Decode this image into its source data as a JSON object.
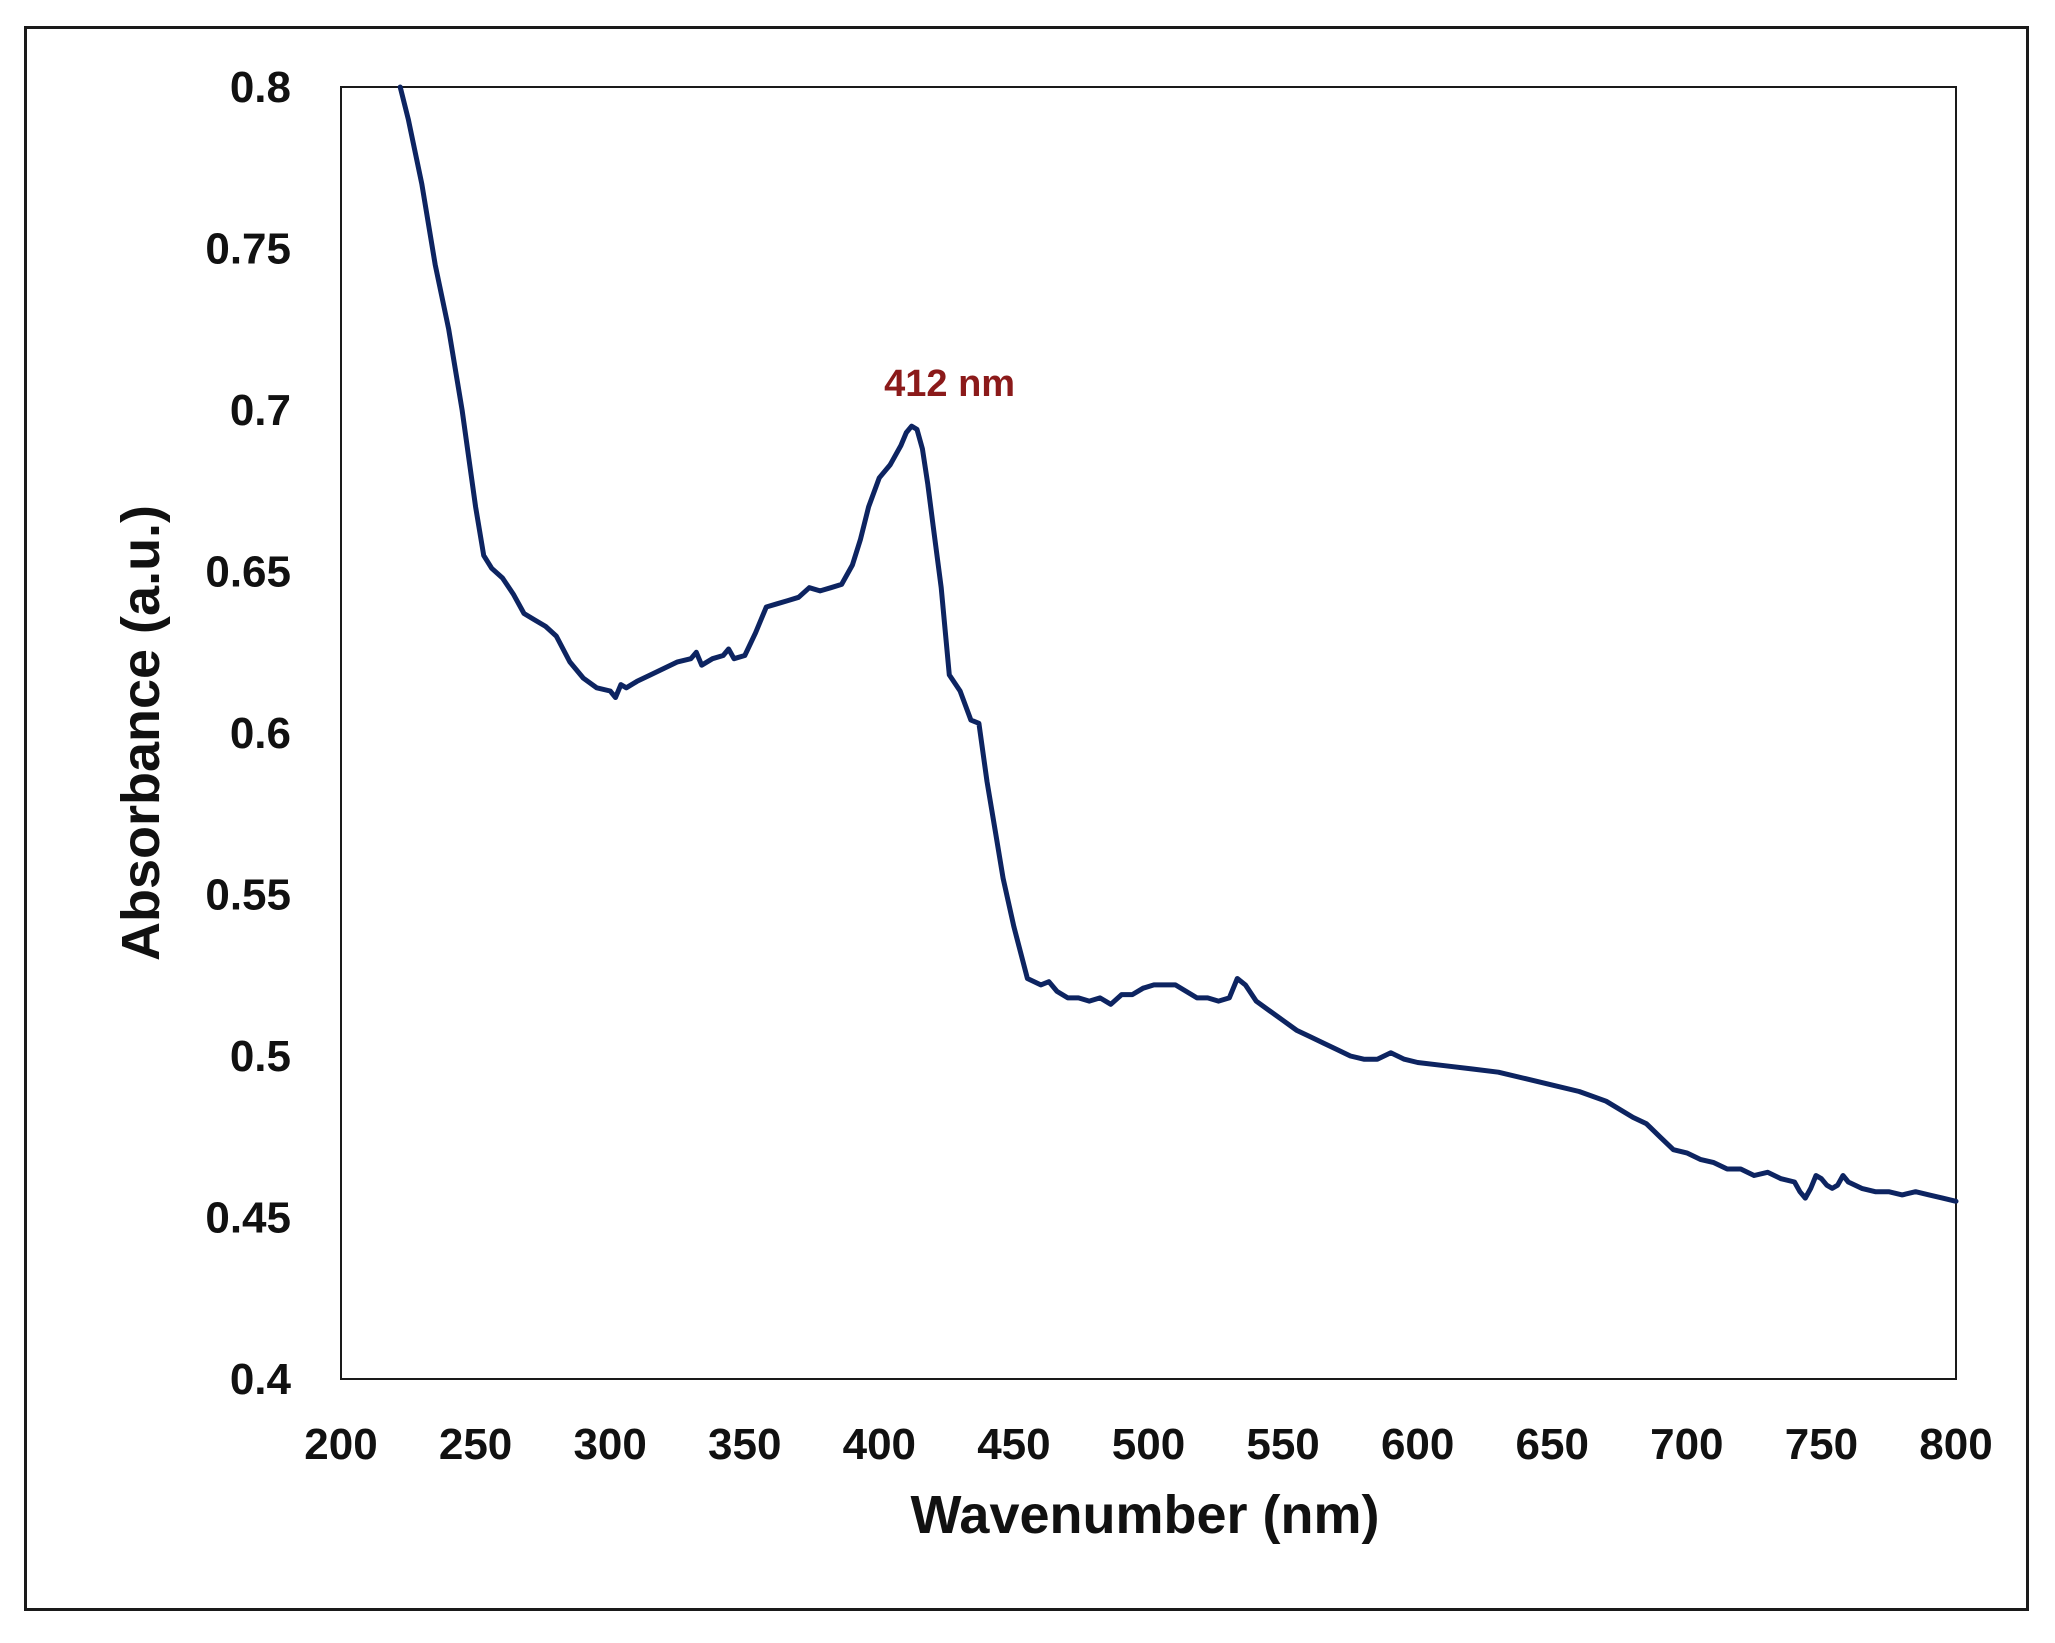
{
  "chart_data": {
    "type": "line",
    "title": "",
    "xlabel": "Wavenumber  (nm)",
    "ylabel": "Absorbance  (a.u.)",
    "xlim": [
      200,
      800
    ],
    "ylim": [
      0.4,
      0.8
    ],
    "x_ticks": [
      "200",
      "250",
      "300",
      "350",
      "400",
      "450",
      "500",
      "550",
      "600",
      "650",
      "700",
      "750",
      "800"
    ],
    "y_ticks": [
      "0.4",
      "0.45",
      "0.5",
      "0.55",
      "0.6",
      "0.65",
      "0.7",
      "0.75",
      "0.8"
    ],
    "grid": false,
    "legend": "none",
    "series": [
      {
        "name": "Absorbance",
        "color": "#0d2461",
        "x": [
          222,
          225,
          230,
          235,
          240,
          245,
          250,
          253,
          256,
          260,
          264,
          268,
          272,
          276,
          280,
          285,
          290,
          295,
          300,
          302,
          304,
          306,
          310,
          315,
          320,
          325,
          330,
          332,
          334,
          338,
          342,
          344,
          346,
          350,
          354,
          358,
          362,
          366,
          370,
          374,
          378,
          382,
          386,
          390,
          393,
          396,
          400,
          404,
          408,
          410,
          412,
          414,
          416,
          418,
          420,
          423,
          426,
          430,
          434,
          437,
          440,
          443,
          446,
          450,
          455,
          460,
          463,
          466,
          470,
          474,
          478,
          482,
          486,
          490,
          494,
          498,
          502,
          506,
          510,
          514,
          518,
          522,
          526,
          530,
          533,
          536,
          540,
          545,
          550,
          555,
          560,
          565,
          570,
          575,
          580,
          585,
          590,
          595,
          600,
          610,
          620,
          630,
          640,
          650,
          660,
          670,
          680,
          685,
          690,
          695,
          700,
          705,
          710,
          715,
          720,
          725,
          730,
          735,
          740,
          742,
          744,
          746,
          748,
          750,
          752,
          754,
          756,
          758,
          760,
          765,
          770,
          775,
          780,
          785,
          790,
          795,
          800
        ],
        "values": [
          0.8,
          0.79,
          0.77,
          0.745,
          0.725,
          0.7,
          0.67,
          0.655,
          0.651,
          0.648,
          0.643,
          0.637,
          0.635,
          0.633,
          0.63,
          0.622,
          0.617,
          0.614,
          0.613,
          0.611,
          0.615,
          0.614,
          0.616,
          0.618,
          0.62,
          0.622,
          0.623,
          0.625,
          0.621,
          0.623,
          0.624,
          0.626,
          0.623,
          0.624,
          0.631,
          0.639,
          0.64,
          0.641,
          0.642,
          0.645,
          0.644,
          0.645,
          0.646,
          0.652,
          0.66,
          0.67,
          0.679,
          0.683,
          0.689,
          0.693,
          0.695,
          0.694,
          0.688,
          0.677,
          0.664,
          0.645,
          0.618,
          0.613,
          0.604,
          0.603,
          0.585,
          0.57,
          0.555,
          0.54,
          0.524,
          0.522,
          0.523,
          0.52,
          0.518,
          0.518,
          0.517,
          0.518,
          0.516,
          0.519,
          0.519,
          0.521,
          0.522,
          0.522,
          0.522,
          0.52,
          0.518,
          0.518,
          0.517,
          0.518,
          0.524,
          0.522,
          0.517,
          0.514,
          0.511,
          0.508,
          0.506,
          0.504,
          0.502,
          0.5,
          0.499,
          0.499,
          0.501,
          0.499,
          0.498,
          0.497,
          0.496,
          0.495,
          0.493,
          0.491,
          0.489,
          0.486,
          0.481,
          0.479,
          0.475,
          0.471,
          0.47,
          0.468,
          0.467,
          0.465,
          0.465,
          0.463,
          0.464,
          0.462,
          0.461,
          0.458,
          0.456,
          0.459,
          0.463,
          0.462,
          0.46,
          0.459,
          0.46,
          0.463,
          0.461,
          0.459,
          0.458,
          0.458,
          0.457,
          0.458,
          0.457,
          0.456,
          0.455
        ]
      }
    ],
    "annotations": [
      {
        "text": "412 nm",
        "x": 412,
        "y": 0.695,
        "color": "#8b1a1a"
      }
    ]
  }
}
